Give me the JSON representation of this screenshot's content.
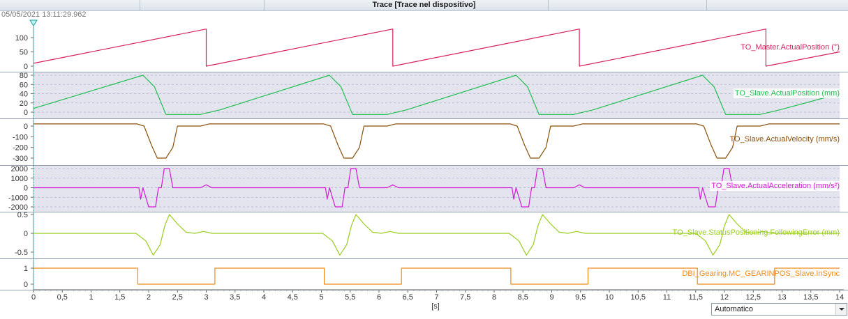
{
  "window": {
    "title": "Trace [Trace nel dispositivo]"
  },
  "timestamp": "05/05/2021 13:11:29.962",
  "colors": {
    "master_position": "#d81e5b",
    "slave_position": "#1fbf50",
    "slave_velocity": "#8a4f0a",
    "slave_acceleration": "#d21bd2",
    "following_error": "#9acd1e",
    "in_sync": "#f08a16",
    "band_shade": "#e4e4ee",
    "grid": "#b8c0d8"
  },
  "x_axis": {
    "unit_label": "[s]",
    "ticks": [
      "0",
      "0,5",
      "1",
      "1,5",
      "2",
      "2,5",
      "3",
      "3,5",
      "4",
      "4,5",
      "5",
      "5,5",
      "6",
      "6,5",
      "7",
      "7,5",
      "8",
      "8,5",
      "9",
      "9,5",
      "10",
      "10,5",
      "11",
      "11,5",
      "12",
      "12,5",
      "13",
      "13,5",
      "14"
    ]
  },
  "zoom_select": {
    "value": "Automatico"
  },
  "chart_data": {
    "type": "line",
    "x_range": [
      0,
      14
    ],
    "cursor_marker_x": 0,
    "panels": [
      {
        "name": "TO_Master.ActualPosition (°)",
        "y_ticks": [
          "100",
          "50",
          "0"
        ],
        "ylim": [
          0,
          130
        ],
        "shaded": false,
        "waveform": "sawtooth",
        "period": 3.24,
        "points": [
          [
            0,
            10
          ],
          [
            3.0,
            130
          ],
          [
            3.0,
            0
          ],
          [
            6.24,
            130
          ],
          [
            6.24,
            0
          ],
          [
            9.48,
            130
          ],
          [
            9.48,
            0
          ],
          [
            12.72,
            130
          ],
          [
            12.72,
            0
          ],
          [
            14,
            50
          ]
        ]
      },
      {
        "name": "TO_Slave.ActualPosition (mm)",
        "y_ticks": [
          "80",
          "60",
          "40",
          "20",
          "0"
        ],
        "ylim": [
          -5,
          85
        ],
        "shaded": true,
        "waveform": "ramp-return",
        "period": 3.24,
        "points": [
          [
            0,
            8
          ],
          [
            1.9,
            80
          ],
          [
            2.1,
            55
          ],
          [
            2.3,
            -5
          ],
          [
            2.9,
            -5
          ],
          [
            3.24,
            5
          ],
          [
            5.14,
            80
          ],
          [
            5.34,
            55
          ],
          [
            5.54,
            -5
          ],
          [
            6.14,
            -5
          ],
          [
            6.48,
            5
          ],
          [
            8.38,
            80
          ],
          [
            8.58,
            55
          ],
          [
            8.78,
            -5
          ],
          [
            9.38,
            -5
          ],
          [
            9.72,
            5
          ],
          [
            11.62,
            80
          ],
          [
            11.82,
            55
          ],
          [
            12.02,
            -5
          ],
          [
            12.62,
            -5
          ],
          [
            12.96,
            5
          ],
          [
            14,
            40
          ]
        ]
      },
      {
        "name": "TO_Slave.ActualVelocity (mm/s)",
        "y_ticks": [
          "0",
          "-100",
          "-200",
          "-300"
        ],
        "ylim": [
          -320,
          30
        ],
        "shaded": false,
        "waveform": "return-stroke",
        "period": 3.24,
        "points": [
          [
            0,
            20
          ],
          [
            1.8,
            20
          ],
          [
            1.92,
            0
          ],
          [
            2.05,
            -180
          ],
          [
            2.15,
            -300
          ],
          [
            2.3,
            -300
          ],
          [
            2.42,
            -200
          ],
          [
            2.5,
            0
          ],
          [
            2.9,
            0
          ],
          [
            3.05,
            20
          ]
        ]
      },
      {
        "name": "TO_Slave.ActualAcceleration (mm/s²)",
        "y_ticks": [
          "2000",
          "1000",
          "0",
          "-1000",
          "-2000"
        ],
        "ylim": [
          -2300,
          2300
        ],
        "shaded": true,
        "waveform": "pulses",
        "period": 3.24,
        "points": [
          [
            0,
            0
          ],
          [
            1.83,
            0
          ],
          [
            1.86,
            -1200
          ],
          [
            1.9,
            0
          ],
          [
            1.95,
            -1000
          ],
          [
            2.0,
            -2000
          ],
          [
            2.12,
            -2000
          ],
          [
            2.17,
            0
          ],
          [
            2.22,
            0
          ],
          [
            2.27,
            2000
          ],
          [
            2.36,
            2000
          ],
          [
            2.42,
            0
          ],
          [
            2.9,
            0
          ],
          [
            3.0,
            300
          ],
          [
            3.1,
            0
          ]
        ]
      },
      {
        "name": "TO_Slave.StatusPositioning.FollowingError (mm)",
        "y_ticks": [
          "0.5",
          "0",
          "-0.5"
        ],
        "ylim": [
          -0.65,
          0.6
        ],
        "shaded": false,
        "waveform": "error-spikes",
        "period": 3.24,
        "points": [
          [
            0,
            0
          ],
          [
            1.78,
            0
          ],
          [
            1.95,
            -0.2
          ],
          [
            2.08,
            -0.58
          ],
          [
            2.2,
            -0.3
          ],
          [
            2.28,
            0.2
          ],
          [
            2.36,
            0.5
          ],
          [
            2.5,
            0.25
          ],
          [
            2.65,
            0.03
          ],
          [
            2.8,
            0
          ],
          [
            2.95,
            0.05
          ],
          [
            3.1,
            0
          ]
        ]
      },
      {
        "name": "DBI_Gearing.MC_GEARINPOS_Slave.InSync",
        "y_ticks": [
          "1",
          "0"
        ],
        "ylim": [
          -0.2,
          1.2
        ],
        "shaded": false,
        "waveform": "square",
        "period": 3.24,
        "points": [
          [
            0,
            1
          ],
          [
            1.81,
            1
          ],
          [
            1.81,
            0
          ],
          [
            3.15,
            0
          ],
          [
            3.15,
            1
          ],
          [
            5.05,
            1
          ],
          [
            5.05,
            0
          ],
          [
            6.39,
            0
          ],
          [
            6.39,
            1
          ],
          [
            8.29,
            1
          ],
          [
            8.29,
            0
          ],
          [
            9.63,
            0
          ],
          [
            9.63,
            1
          ],
          [
            11.53,
            1
          ],
          [
            11.53,
            0
          ],
          [
            12.87,
            0
          ],
          [
            12.87,
            1
          ],
          [
            14,
            1
          ]
        ]
      }
    ]
  }
}
